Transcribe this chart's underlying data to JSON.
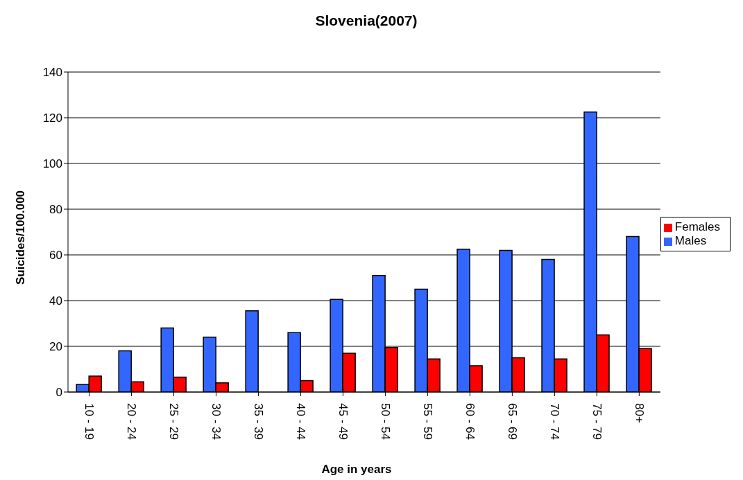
{
  "chart_data": {
    "type": "bar",
    "title": "Slovenia(2007)",
    "xlabel": "Age in years",
    "ylabel": "Suicides/100.000",
    "categories": [
      "10 - 19",
      "20 - 24",
      "25 - 29",
      "30 - 34",
      "35 - 39",
      "40 - 44",
      "45 - 49",
      "50 - 54",
      "55 - 59",
      "60 - 64",
      "65 - 69",
      "70 - 74",
      "75 - 79",
      "80+"
    ],
    "series": [
      {
        "name": "Males",
        "color": "#3366ff",
        "values": [
          3.3,
          18,
          28,
          24,
          35.5,
          26,
          40.5,
          51,
          45,
          62.5,
          62,
          58,
          122.5,
          68
        ]
      },
      {
        "name": "Females",
        "color": "#ff0000",
        "values": [
          7,
          4.5,
          6.5,
          4,
          null,
          5,
          17,
          19.5,
          14.5,
          11.5,
          15,
          14.5,
          25,
          19
        ]
      }
    ],
    "ylim": [
      0,
      140
    ],
    "yticks": [
      0,
      20,
      40,
      60,
      80,
      100,
      120,
      140
    ],
    "grid": "y",
    "legend": "right"
  }
}
